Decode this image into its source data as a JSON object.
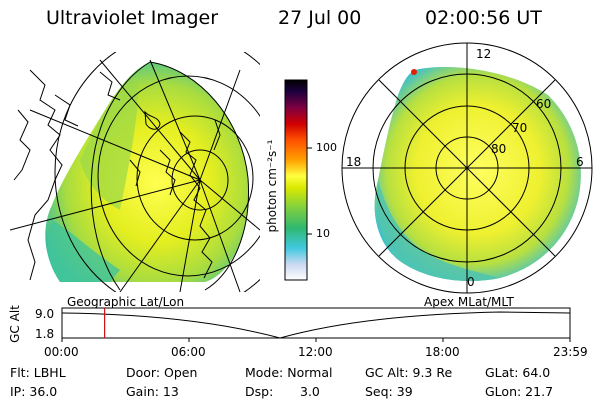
{
  "header": {
    "instrument": "Ultraviolet Imager",
    "date": "27 Jul 00",
    "time": "02:00:56 UT"
  },
  "geo_panel": {
    "label": "Geographic Lat/Lon"
  },
  "apex_panel": {
    "label": "Apex MLat/MLT",
    "mlt_ticks": [
      "12",
      "18",
      "6",
      "0"
    ],
    "mlat_ticks": [
      "60",
      "70",
      "80"
    ]
  },
  "colorbar": {
    "label": "photon cm⁻²s⁻¹",
    "ticks": [
      "100",
      "10"
    ],
    "colors": [
      "#ffffff",
      "#c8d8f0",
      "#40c8e0",
      "#30b870",
      "#7fd040",
      "#d8e800",
      "#ffff40",
      "#ffa000",
      "#ff5000",
      "#d00000",
      "#800040",
      "#200040",
      "#000000"
    ]
  },
  "altitude_strip": {
    "axis_label": "GC Alt",
    "ymax": "9.0",
    "ymin": "1.8",
    "time_ticks": [
      "00:00",
      "06:00",
      "12:00",
      "18:00",
      "23:59"
    ],
    "current_time_fraction": 0.0839,
    "cursor_color": "#d01010"
  },
  "status": {
    "filter": "Flt: LBHL",
    "door": "Door: Open",
    "mode": "Mode: Normal",
    "gc_alt": "GC Alt: 9.3 Re",
    "glat": "GLat: 64.0",
    "ip": "IP: 36.0",
    "gain": "Gain: 13",
    "dsp_label": "Dsp:",
    "dsp_value": "3.0",
    "seq": "Seq: 39",
    "glon": "GLon: 21.7"
  }
}
